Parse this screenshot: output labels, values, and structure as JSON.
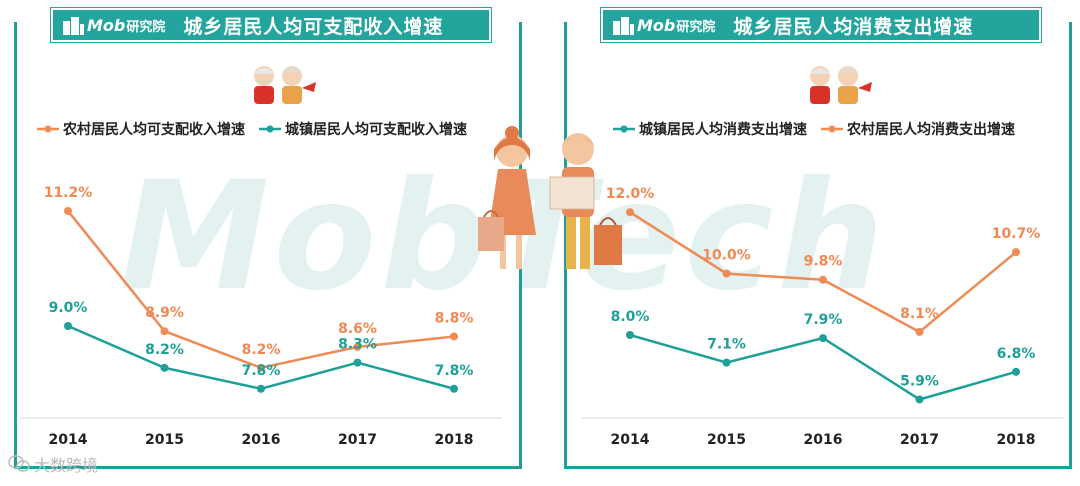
{
  "watermark": "MobTech",
  "brand": {
    "logo_text": "Mob",
    "logo_cn": "研究院"
  },
  "footer": {
    "text": "大数跨境"
  },
  "colors": {
    "rural": "#f08a55",
    "urban": "#1e9f98",
    "header": "#23a49c"
  },
  "panels": [
    {
      "title": "城乡居民人均可支配收入增速",
      "legend": [
        {
          "label": "农村居民人均可支配收入增速",
          "color": "#f08a55"
        },
        {
          "label": "城镇居民人均可支配收入增速",
          "color": "#1e9f98"
        }
      ]
    },
    {
      "title": "城乡居民人均消费支出增速",
      "legend": [
        {
          "label": "城镇居民人均消费支出增速",
          "color": "#1e9f98"
        },
        {
          "label": "农村居民人均消费支出增速",
          "color": "#f08a55"
        }
      ]
    }
  ],
  "chart_data": [
    {
      "type": "line",
      "title": "城乡居民人均可支配收入增速",
      "categories": [
        "2014",
        "2015",
        "2016",
        "2017",
        "2018"
      ],
      "series": [
        {
          "name": "农村居民人均可支配收入增速",
          "values": [
            11.2,
            8.9,
            8.2,
            8.6,
            8.8
          ],
          "labels": [
            "11.2%",
            "8.9%",
            "8.2%",
            "8.6%",
            "8.8%"
          ],
          "color": "#f08a55"
        },
        {
          "name": "城镇居民人均可支配收入增速",
          "values": [
            9.0,
            8.2,
            7.8,
            8.3,
            7.8
          ],
          "labels": [
            "9.0%",
            "8.2%",
            "7.8%",
            "8.3%",
            "7.8%"
          ],
          "color": "#1e9f98"
        }
      ],
      "legend_position": "top",
      "grid": false
    },
    {
      "type": "line",
      "title": "城乡居民人均消费支出增速",
      "categories": [
        "2014",
        "2015",
        "2016",
        "2017",
        "2018"
      ],
      "series": [
        {
          "name": "城镇居民人均消费支出增速",
          "values": [
            8.0,
            7.1,
            7.9,
            5.9,
            6.8
          ],
          "labels": [
            "8.0%",
            "7.1%",
            "7.9%",
            "5.9%",
            "6.8%"
          ],
          "color": "#1e9f98"
        },
        {
          "name": "农村居民人均消费支出增速",
          "values": [
            12.0,
            10.0,
            9.8,
            8.1,
            10.7
          ],
          "labels": [
            "12.0%",
            "10.0%",
            "9.8%",
            "8.1%",
            "10.7%"
          ],
          "color": "#f08a55"
        }
      ],
      "legend_position": "top",
      "grid": false
    }
  ]
}
